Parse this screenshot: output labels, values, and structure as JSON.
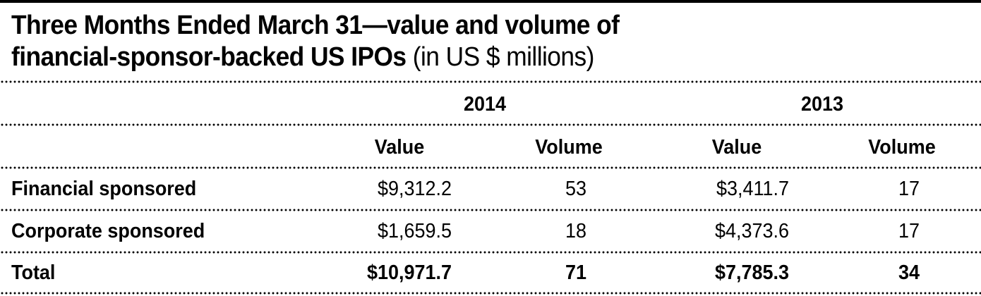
{
  "title": {
    "line1": "Three Months Ended March 31—value and volume of",
    "line2": "financial-sponsor-backed US IPOs",
    "unit": " (in US $ millions)"
  },
  "header": {
    "years": [
      "2014",
      "2013"
    ],
    "columns": [
      "Value",
      "Volume",
      "Value",
      "Volume"
    ]
  },
  "rows": [
    {
      "label": "Financial sponsored",
      "v2014": "$9,312.2",
      "vol2014": "53",
      "v2013": "$3,411.7",
      "vol2013": "17"
    },
    {
      "label": "Corporate sponsored",
      "v2014": "$1,659.5",
      "vol2014": "18",
      "v2013": "$4,373.6",
      "vol2013": "17"
    },
    {
      "label": "Total",
      "v2014": "$10,971.7",
      "vol2014": "71",
      "v2013": "$7,785.3",
      "vol2013": "34"
    }
  ]
}
